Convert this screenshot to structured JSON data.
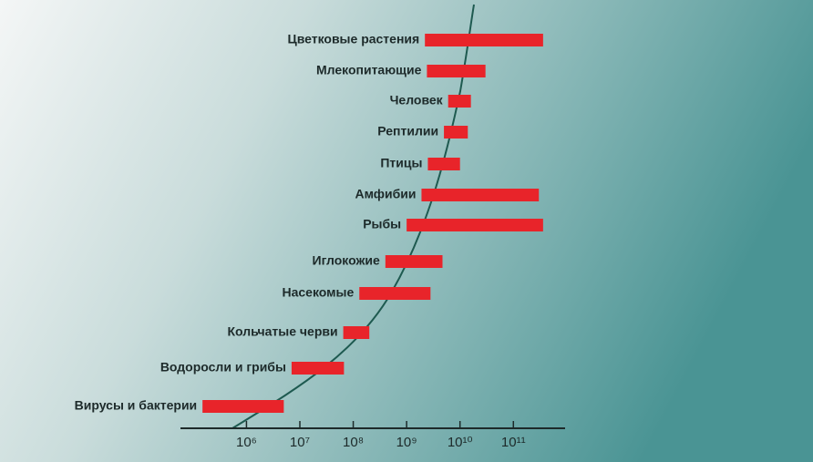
{
  "chart_data": {
    "type": "range-bar",
    "categories": [
      "Цветковые растения",
      "Млекопитающие",
      "Человек",
      "Рептилии",
      "Птицы",
      "Амфибии",
      "Рыбы",
      "Иглокожие",
      "Насекомые",
      "Кольчатые черви",
      "Водоросли и грибы",
      "Вирусы и бактерии"
    ],
    "start": [
      2200000000,
      2400000000,
      6000000000,
      5000000000,
      2500000000,
      1900000000,
      1000000000,
      400000000,
      130000000,
      65000000,
      7000000,
      150000
    ],
    "end": [
      360000000000,
      30000000000,
      16000000000,
      14000000000,
      10000000000,
      300000000000,
      360000000000,
      4700000000,
      2800000000,
      200000000,
      67000000,
      5000000
    ],
    "color": "#e8242a",
    "log_x": true,
    "xlim": [
      58000,
      930000000000
    ],
    "xticks": [
      {
        "value": 1000000,
        "label": "10⁶"
      },
      {
        "value": 10000000,
        "label": "10⁷"
      },
      {
        "value": 100000000,
        "label": "10⁸"
      },
      {
        "value": 1000000000,
        "label": "10⁹"
      },
      {
        "value": 10000000000,
        "label": "10¹⁰"
      },
      {
        "value": 100000000000,
        "label": "10¹¹"
      }
    ]
  }
}
